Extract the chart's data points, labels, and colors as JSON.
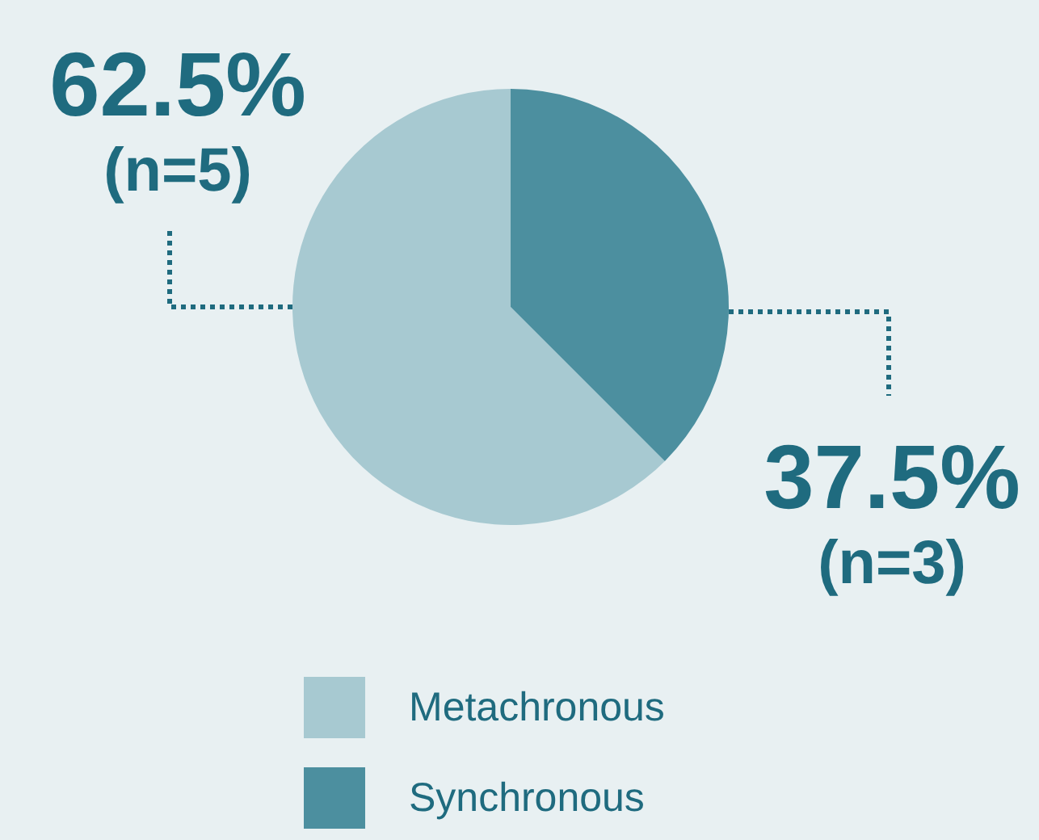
{
  "chart_data": {
    "type": "pie",
    "categories": [
      "Metachronous",
      "Synchronous"
    ],
    "values": [
      62.5,
      37.5
    ],
    "colors": [
      "#a7c9d1",
      "#4c8f9f"
    ],
    "value_labels": [
      "62.5%\n(n=5)",
      "37.5%\n(n=3)"
    ],
    "legend": "bottom"
  }
}
